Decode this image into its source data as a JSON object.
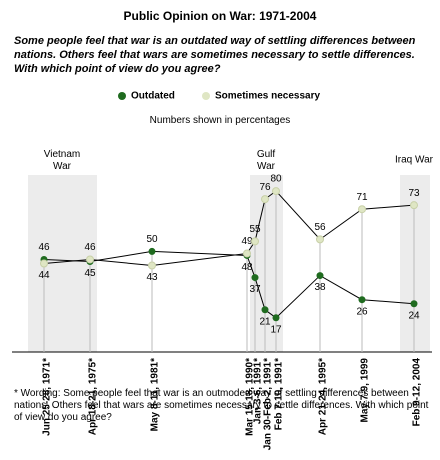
{
  "chart_data": {
    "type": "line",
    "title": "Public Opinion on War: 1971-2004",
    "subtitle": "Some people feel that war is an outdated way of settling differences between nations. Others feel that wars are sometimes necessary to settle differences. With which point of view do you agree?",
    "note": "Numbers shown in percentages",
    "categories": [
      "Jun 25-28, 1971*",
      "Apr 18-21, 1975*",
      "May 8-11, 1981*",
      "Mar 15-18, 1990*",
      "Jan 3-6, 1991*",
      "Jan 30-Feb 2, 1991*",
      "Feb 7-10, 1991*",
      "Apr 21-24, 1995*",
      "May 7-9, 1999",
      "Feb 9-12, 2004"
    ],
    "series": [
      {
        "name": "Outdated",
        "color": "#1f6b1f",
        "values": [
          46,
          45,
          50,
          48,
          37,
          21,
          17,
          38,
          26,
          24
        ]
      },
      {
        "name": "Sometimes necessary",
        "color": "#dfe6c4",
        "values": [
          44,
          46,
          43,
          49,
          55,
          76,
          80,
          56,
          71,
          73
        ]
      }
    ],
    "annotations": [
      "Vietnam War",
      "Gulf War",
      "Iraq War"
    ],
    "ylim": [
      0,
      88
    ],
    "footnote": "* Wording: Some people feel that war is an outmoded way of settling differences between nations. Others feel that wars are sometimes necessary to settle differences. With which point of view do you agree?"
  }
}
